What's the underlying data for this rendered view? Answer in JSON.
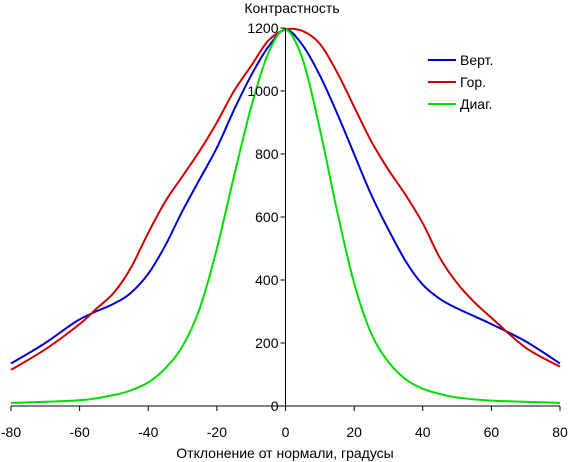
{
  "chart_data": {
    "type": "line",
    "title": "",
    "xlabel": "Отклонение от нормали, градусы",
    "ylabel": "Контрастность",
    "xlim": [
      -80,
      80
    ],
    "ylim": [
      0,
      1200
    ],
    "xticks": [
      -80,
      -60,
      -40,
      -20,
      0,
      20,
      40,
      60,
      80
    ],
    "yticks": [
      0,
      200,
      400,
      600,
      800,
      1000,
      1200
    ],
    "grid": false,
    "legend_position": "top-right",
    "series": [
      {
        "name": "Верт.",
        "color": "#0000cc",
        "x": [
          -80,
          -70,
          -60,
          -50,
          -45,
          -40,
          -35,
          -30,
          -25,
          -20,
          -15,
          -10,
          -5,
          0,
          5,
          10,
          15,
          20,
          25,
          30,
          35,
          40,
          45,
          50,
          55,
          60,
          70,
          80
        ],
        "y": [
          135,
          200,
          275,
          325,
          360,
          420,
          510,
          620,
          720,
          820,
          940,
          1050,
          1140,
          1195,
          1145,
          1050,
          930,
          800,
          670,
          560,
          460,
          385,
          340,
          310,
          285,
          260,
          205,
          135
        ]
      },
      {
        "name": "Гор.",
        "color": "#cc0000",
        "x": [
          -80,
          -70,
          -60,
          -55,
          -50,
          -45,
          -40,
          -35,
          -30,
          -25,
          -20,
          -15,
          -10,
          -5,
          0,
          5,
          10,
          15,
          20,
          25,
          30,
          35,
          40,
          45,
          50,
          55,
          60,
          70,
          80
        ],
        "y": [
          115,
          180,
          260,
          310,
          360,
          440,
          550,
          650,
          730,
          810,
          900,
          1000,
          1080,
          1160,
          1195,
          1190,
          1150,
          1060,
          950,
          840,
          750,
          670,
          580,
          470,
          390,
          330,
          280,
          185,
          125
        ]
      },
      {
        "name": "Диаг.",
        "color": "#00dd00",
        "x": [
          -80,
          -60,
          -50,
          -45,
          -40,
          -35,
          -30,
          -25,
          -20,
          -15,
          -10,
          -5,
          0,
          5,
          10,
          15,
          20,
          25,
          30,
          35,
          40,
          45,
          50,
          60,
          80
        ],
        "y": [
          10,
          18,
          35,
          50,
          75,
          120,
          190,
          310,
          500,
          730,
          950,
          1120,
          1195,
          1100,
          880,
          620,
          390,
          230,
          140,
          85,
          55,
          38,
          27,
          17,
          10
        ]
      }
    ]
  }
}
